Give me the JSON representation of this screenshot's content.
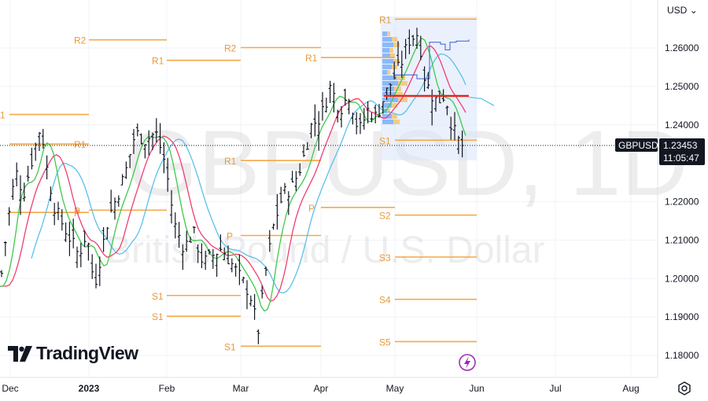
{
  "header": {
    "currency": "USD"
  },
  "watermark": {
    "symbol": "GBPUSD, 1D",
    "description": "British Pound / U.S. Dollar"
  },
  "symbol_badge": {
    "symbol": "GBPUSD",
    "price": "1.23453",
    "countdown": "11:05:47"
  },
  "brand": {
    "name": "TradingView"
  },
  "chart_data": {
    "type": "candlestick",
    "y_ticks": [
      "1.26000",
      "1.25000",
      "1.24000",
      "1.22000",
      "1.21000",
      "1.20000",
      "1.19000",
      "1.18000"
    ],
    "x_ticks": [
      "Dec",
      "2023",
      "Feb",
      "Mar",
      "Apr",
      "May",
      "Jun",
      "Jul",
      "Aug"
    ],
    "last_price": 1.23453,
    "pivot_levels": [
      {
        "label": "R2",
        "value": 1.2621
      },
      {
        "label": "R1",
        "value": 1.2568
      },
      {
        "label": "P",
        "value": 1.2178
      },
      {
        "label": "S1",
        "value": 1.1902
      },
      {
        "label": "R2",
        "value": 1.2601
      },
      {
        "label": "R1",
        "value": 1.2307
      },
      {
        "label": "P",
        "value": 1.2112
      },
      {
        "label": "S1",
        "value": 1.1824
      },
      {
        "label": "R1",
        "value": 1.2575
      },
      {
        "label": "P",
        "value": 1.2185
      },
      {
        "label": "R1",
        "value": 1.2675
      },
      {
        "label": "S1",
        "value": 1.236
      },
      {
        "label": "S2",
        "value": 1.2165
      },
      {
        "label": "S3",
        "value": 1.2056
      },
      {
        "label": "S4",
        "value": 1.1946
      },
      {
        "label": "S5",
        "value": 1.1836
      },
      {
        "label": "S1",
        "value": 1.1956
      },
      {
        "label": "1",
        "value": 1.2427
      },
      {
        "label": "R1",
        "value": 1.235
      },
      {
        "label": "P",
        "value": 1.2172
      }
    ]
  }
}
